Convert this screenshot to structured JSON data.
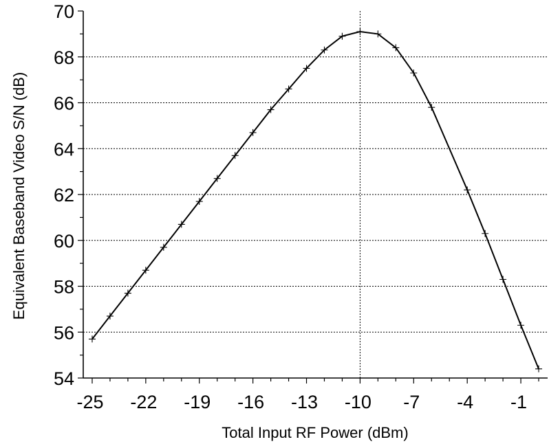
{
  "chart_data": {
    "type": "line",
    "title": "",
    "xlabel": "Total Input RF Power (dBm)",
    "ylabel": "Equivalent Baseband Video S/N (dB)",
    "xlim": [
      -25.5,
      0.5
    ],
    "ylim": [
      54,
      70
    ],
    "xticks": [
      -25,
      -22,
      -19,
      -16,
      -13,
      -10,
      -7,
      -4,
      -1
    ],
    "xtick_labels": [
      "-25",
      "-22",
      "-19",
      "-16",
      "-13",
      "-10",
      "-7",
      "-4",
      "-1"
    ],
    "yticks": [
      54,
      56,
      58,
      60,
      62,
      64,
      66,
      68,
      70
    ],
    "ytick_labels": [
      "54",
      "56",
      "58",
      "60",
      "62",
      "64",
      "66",
      "68",
      "70"
    ],
    "grid": "horizontal dashed lines at major y ticks",
    "reference_line_x": -10,
    "marker": "plus",
    "series": [
      {
        "x": [
          -25,
          -24,
          -23,
          -22,
          -21,
          -20,
          -19,
          -18,
          -17,
          -16,
          -15,
          -14,
          -13,
          -12,
          -11,
          -10,
          -9,
          -8,
          -7,
          -6,
          -4,
          -3,
          -2,
          -1,
          0
        ],
        "y": [
          55.7,
          56.7,
          57.7,
          58.7,
          59.7,
          60.7,
          61.7,
          62.7,
          63.7,
          64.7,
          65.7,
          66.6,
          67.5,
          68.3,
          68.9,
          69.1,
          69.0,
          68.4,
          67.3,
          65.8,
          62.2,
          60.3,
          58.3,
          56.3,
          54.4
        ]
      }
    ]
  }
}
